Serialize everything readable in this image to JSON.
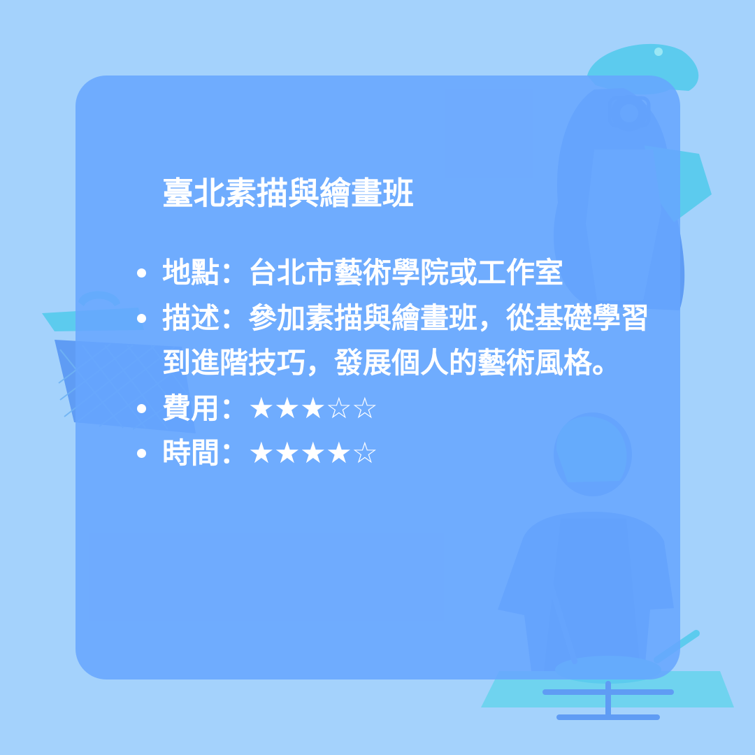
{
  "card": {
    "title": "臺北素描與繪畫班"
  },
  "items": [
    {
      "label": "地點",
      "separator": "：",
      "text": "台北市藝術學院或工作室"
    },
    {
      "label": " 描述",
      "separator": "：",
      "text": "參加素描與繪畫班，從基礎學習到進階技巧，發展個人的藝術風格。"
    },
    {
      "label": "費用",
      "separator": "：",
      "rating": 3,
      "max_rating": 5
    },
    {
      "label": "時間",
      "separator": "：",
      "rating": 4,
      "max_rating": 5
    }
  ],
  "rating_glyphs": {
    "filled": "★",
    "empty": "☆"
  },
  "colors": {
    "background": "#a4d2fc",
    "card": "#66a5fe",
    "text": "#ffffff",
    "illustration_teal": "#5ccbee",
    "illustration_blue": "#5f9cf4"
  },
  "illustrations": [
    "photographer-woman-illustration",
    "picnic-basket-illustration",
    "cooking-person-illustration"
  ]
}
